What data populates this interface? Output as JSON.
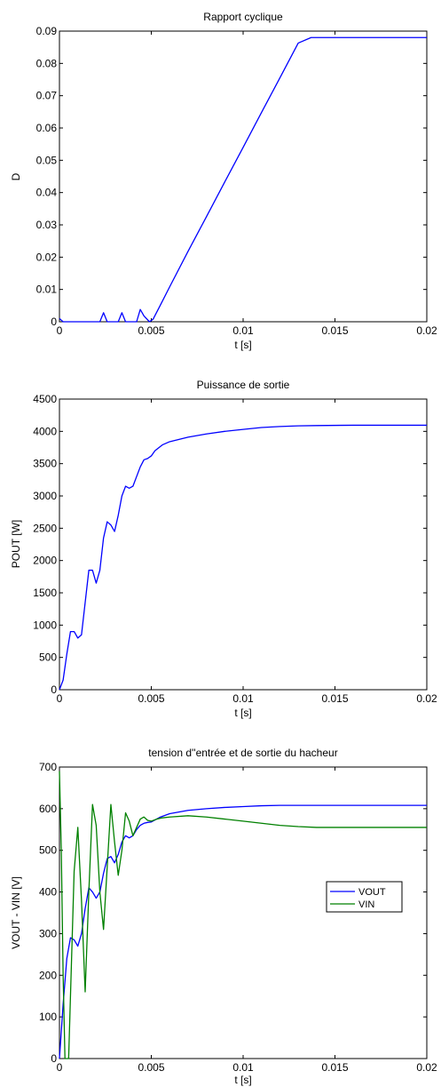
{
  "chart_data": [
    {
      "type": "line",
      "title": "Rapport cyclique",
      "xlabel": "t [s]",
      "ylabel": "D",
      "xlim": [
        0,
        0.02
      ],
      "ylim": [
        0,
        0.09
      ],
      "xticks": [
        0,
        0.005,
        0.01,
        0.015,
        0.02
      ],
      "xtick_labels": [
        "0",
        "0.005",
        "0.01",
        "0.015",
        "0.02"
      ],
      "yticks": [
        0,
        0.01,
        0.02,
        0.03,
        0.04,
        0.05,
        0.06,
        0.07,
        0.08,
        0.09
      ],
      "ytick_labels": [
        "0",
        "0.01",
        "0.02",
        "0.03",
        "0.04",
        "0.05",
        "0.06",
        "0.07",
        "0.08",
        "0.09"
      ],
      "grid": false,
      "series": [
        {
          "color": "#0000ff",
          "x": [
            0,
            0.0001,
            0.0002,
            0.0022,
            0.0024,
            0.0026,
            0.0032,
            0.0034,
            0.0036,
            0.0042,
            0.0044,
            0.0046,
            0.0049,
            0.0051,
            0.0055,
            0.006,
            0.007,
            0.008,
            0.009,
            0.01,
            0.011,
            0.012,
            0.013,
            0.0137,
            0.014,
            0.016,
            0.018,
            0.02
          ],
          "y": [
            0.001,
            0.0005,
            0,
            0,
            0.0028,
            0,
            0,
            0.0028,
            0,
            0,
            0.0038,
            0.0018,
            0,
            0.0008,
            0.0052,
            0.0108,
            0.0218,
            0.0325,
            0.0433,
            0.054,
            0.0648,
            0.0755,
            0.0863,
            0.088,
            0.088,
            0.088,
            0.088,
            0.088
          ]
        }
      ]
    },
    {
      "type": "line",
      "title": "Puissance de sortie",
      "xlabel": "t [s]",
      "ylabel": "POUT [W]",
      "xlim": [
        0,
        0.02
      ],
      "ylim": [
        0,
        4500
      ],
      "xticks": [
        0,
        0.005,
        0.01,
        0.015,
        0.02
      ],
      "xtick_labels": [
        "0",
        "0.005",
        "0.01",
        "0.015",
        "0.02"
      ],
      "yticks": [
        0,
        500,
        1000,
        1500,
        2000,
        2500,
        3000,
        3500,
        4000,
        4500
      ],
      "ytick_labels": [
        "0",
        "500",
        "1000",
        "1500",
        "2000",
        "2500",
        "3000",
        "3500",
        "4000",
        "4500"
      ],
      "grid": false,
      "series": [
        {
          "color": "#0000ff",
          "x": [
            0,
            0.0002,
            0.0004,
            0.0006,
            0.0008,
            0.001,
            0.0012,
            0.0014,
            0.0016,
            0.0018,
            0.002,
            0.0022,
            0.0024,
            0.0026,
            0.0028,
            0.003,
            0.0032,
            0.0034,
            0.0036,
            0.0038,
            0.004,
            0.0042,
            0.0044,
            0.0046,
            0.0048,
            0.005,
            0.0052,
            0.0056,
            0.006,
            0.007,
            0.008,
            0.009,
            0.01,
            0.011,
            0.012,
            0.013,
            0.014,
            0.016,
            0.018,
            0.02
          ],
          "y": [
            0,
            150,
            550,
            900,
            900,
            800,
            850,
            1350,
            1850,
            1850,
            1650,
            1850,
            2350,
            2600,
            2550,
            2450,
            2700,
            3000,
            3150,
            3120,
            3150,
            3300,
            3450,
            3560,
            3580,
            3620,
            3700,
            3790,
            3840,
            3910,
            3960,
            4000,
            4030,
            4060,
            4075,
            4085,
            4090,
            4095,
            4095,
            4095
          ]
        }
      ]
    },
    {
      "type": "line",
      "title": "tension d''entrée et de sortie du hacheur",
      "xlabel": "t [s]",
      "ylabel": "VOUT - VIN [V]",
      "xlim": [
        0,
        0.02
      ],
      "ylim": [
        0,
        700
      ],
      "xticks": [
        0,
        0.005,
        0.01,
        0.015,
        0.02
      ],
      "xtick_labels": [
        "0",
        "0.005",
        "0.01",
        "0.015",
        "0.02"
      ],
      "yticks": [
        0,
        100,
        200,
        300,
        400,
        500,
        600,
        700
      ],
      "ytick_labels": [
        "0",
        "100",
        "200",
        "300",
        "400",
        "500",
        "600",
        "700"
      ],
      "grid": false,
      "legend_position": "right",
      "series": [
        {
          "name": "VOUT",
          "color": "#0000ff",
          "x": [
            0,
            0.0002,
            0.0004,
            0.0006,
            0.0008,
            0.001,
            0.0012,
            0.0014,
            0.0016,
            0.0018,
            0.002,
            0.0022,
            0.0024,
            0.0026,
            0.0028,
            0.003,
            0.0032,
            0.0034,
            0.0036,
            0.0038,
            0.004,
            0.0042,
            0.0044,
            0.0046,
            0.0048,
            0.005,
            0.0055,
            0.006,
            0.007,
            0.008,
            0.009,
            0.01,
            0.011,
            0.012,
            0.013,
            0.014,
            0.016,
            0.018,
            0.02
          ],
          "y": [
            0,
            130,
            240,
            290,
            285,
            270,
            300,
            360,
            410,
            400,
            385,
            400,
            445,
            480,
            485,
            470,
            490,
            520,
            535,
            530,
            535,
            550,
            560,
            565,
            567,
            568,
            580,
            588,
            596,
            600,
            603,
            605,
            607,
            608,
            608,
            608,
            608,
            608,
            608
          ]
        },
        {
          "name": "VIN",
          "color": "#008000",
          "x": [
            0,
            0.0001,
            0.0002,
            0.0003,
            0.0004,
            0.0005,
            0.0006,
            0.0008,
            0.001,
            0.0012,
            0.0014,
            0.0016,
            0.0018,
            0.002,
            0.0022,
            0.0024,
            0.0026,
            0.0028,
            0.003,
            0.0032,
            0.0034,
            0.0036,
            0.0038,
            0.004,
            0.0042,
            0.0044,
            0.0046,
            0.0048,
            0.005,
            0.0053,
            0.0056,
            0.006,
            0.007,
            0.008,
            0.009,
            0.01,
            0.011,
            0.012,
            0.013,
            0.014,
            0.016,
            0.018,
            0.02
          ],
          "y": [
            690,
            500,
            200,
            0,
            0,
            0,
            150,
            450,
            555,
            380,
            160,
            400,
            610,
            560,
            400,
            310,
            460,
            610,
            520,
            440,
            500,
            590,
            570,
            535,
            555,
            575,
            580,
            572,
            570,
            575,
            578,
            580,
            583,
            580,
            575,
            570,
            565,
            560,
            557,
            555,
            555,
            555,
            555
          ]
        }
      ]
    }
  ]
}
